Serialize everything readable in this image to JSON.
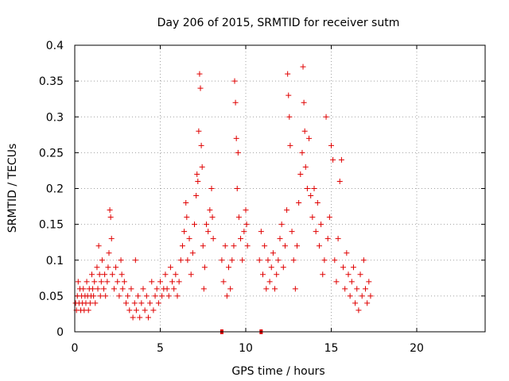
{
  "chart_data": {
    "type": "scatter",
    "title": "Day 206 of 2015, SRMTID for receiver sutm",
    "xlabel": "GPS time / hours",
    "ylabel": "SRMTID / TECUs",
    "xlim": [
      0,
      24
    ],
    "ylim": [
      0,
      0.4
    ],
    "xticks": [
      0,
      5,
      10,
      15,
      20
    ],
    "xtick_labels": [
      "0",
      "5",
      "10",
      "15",
      "20"
    ],
    "yticks": [
      0,
      0.05,
      0.1,
      0.15,
      0.2,
      0.25,
      0.3,
      0.35,
      0.4
    ],
    "ytick_labels": [
      "0",
      "0.05",
      "0.1",
      "0.15",
      "0.2",
      "0.25",
      "0.3",
      "0.35",
      "0.4"
    ],
    "grid": true,
    "marker": "plus",
    "color": "#e00000",
    "series": [
      {
        "name": "SRMTID",
        "points": [
          [
            0.05,
            0.04
          ],
          [
            0.1,
            0.03
          ],
          [
            0.15,
            0.05
          ],
          [
            0.2,
            0.07
          ],
          [
            0.25,
            0.04
          ],
          [
            0.3,
            0.06
          ],
          [
            0.35,
            0.03
          ],
          [
            0.4,
            0.05
          ],
          [
            0.45,
            0.04
          ],
          [
            0.5,
            0.06
          ],
          [
            0.55,
            0.03
          ],
          [
            0.6,
            0.05
          ],
          [
            0.65,
            0.04
          ],
          [
            0.7,
            0.07
          ],
          [
            0.75,
            0.05
          ],
          [
            0.8,
            0.03
          ],
          [
            0.85,
            0.06
          ],
          [
            0.9,
            0.04
          ],
          [
            0.95,
            0.05
          ],
          [
            1.0,
            0.08
          ],
          [
            1.05,
            0.06
          ],
          [
            1.1,
            0.05
          ],
          [
            1.15,
            0.07
          ],
          [
            1.2,
            0.04
          ],
          [
            1.3,
            0.09
          ],
          [
            1.35,
            0.06
          ],
          [
            1.4,
            0.12
          ],
          [
            1.45,
            0.08
          ],
          [
            1.5,
            0.05
          ],
          [
            1.55,
            0.07
          ],
          [
            1.6,
            0.1
          ],
          [
            1.7,
            0.06
          ],
          [
            1.75,
            0.08
          ],
          [
            1.8,
            0.05
          ],
          [
            1.9,
            0.07
          ],
          [
            1.95,
            0.09
          ],
          [
            2.0,
            0.11
          ],
          [
            2.05,
            0.17
          ],
          [
            2.1,
            0.16
          ],
          [
            2.15,
            0.13
          ],
          [
            2.2,
            0.08
          ],
          [
            2.3,
            0.06
          ],
          [
            2.4,
            0.09
          ],
          [
            2.5,
            0.07
          ],
          [
            2.6,
            0.05
          ],
          [
            2.7,
            0.1
          ],
          [
            2.75,
            0.08
          ],
          [
            2.8,
            0.06
          ],
          [
            2.9,
            0.07
          ],
          [
            3.0,
            0.04
          ],
          [
            3.1,
            0.05
          ],
          [
            3.2,
            0.03
          ],
          [
            3.3,
            0.06
          ],
          [
            3.4,
            0.02
          ],
          [
            3.5,
            0.04
          ],
          [
            3.55,
            0.1
          ],
          [
            3.6,
            0.03
          ],
          [
            3.7,
            0.05
          ],
          [
            3.8,
            0.02
          ],
          [
            3.9,
            0.04
          ],
          [
            4.0,
            0.06
          ],
          [
            4.1,
            0.03
          ],
          [
            4.2,
            0.05
          ],
          [
            4.3,
            0.02
          ],
          [
            4.4,
            0.04
          ],
          [
            4.5,
            0.07
          ],
          [
            4.6,
            0.03
          ],
          [
            4.7,
            0.05
          ],
          [
            4.8,
            0.06
          ],
          [
            4.9,
            0.04
          ],
          [
            5.0,
            0.07
          ],
          [
            5.1,
            0.05
          ],
          [
            5.2,
            0.06
          ],
          [
            5.3,
            0.08
          ],
          [
            5.4,
            0.06
          ],
          [
            5.5,
            0.05
          ],
          [
            5.6,
            0.09
          ],
          [
            5.7,
            0.07
          ],
          [
            5.8,
            0.06
          ],
          [
            5.9,
            0.08
          ],
          [
            6.0,
            0.05
          ],
          [
            6.1,
            0.07
          ],
          [
            6.2,
            0.1
          ],
          [
            6.3,
            0.12
          ],
          [
            6.4,
            0.14
          ],
          [
            6.5,
            0.18
          ],
          [
            6.55,
            0.16
          ],
          [
            6.6,
            0.1
          ],
          [
            6.7,
            0.13
          ],
          [
            6.8,
            0.08
          ],
          [
            6.9,
            0.11
          ],
          [
            7.0,
            0.15
          ],
          [
            7.1,
            0.19
          ],
          [
            7.15,
            0.22
          ],
          [
            7.2,
            0.21
          ],
          [
            7.25,
            0.28
          ],
          [
            7.3,
            0.36
          ],
          [
            7.35,
            0.34
          ],
          [
            7.4,
            0.26
          ],
          [
            7.45,
            0.23
          ],
          [
            7.5,
            0.12
          ],
          [
            7.55,
            0.06
          ],
          [
            7.6,
            0.09
          ],
          [
            7.7,
            0.15
          ],
          [
            7.8,
            0.14
          ],
          [
            7.9,
            0.17
          ],
          [
            8.0,
            0.2
          ],
          [
            8.05,
            0.16
          ],
          [
            8.1,
            0.13
          ],
          [
            8.6,
            0.1
          ],
          [
            8.7,
            0.07
          ],
          [
            8.8,
            0.12
          ],
          [
            8.9,
            0.05
          ],
          [
            9.0,
            0.09
          ],
          [
            9.1,
            0.06
          ],
          [
            9.2,
            0.1
          ],
          [
            9.3,
            0.12
          ],
          [
            9.35,
            0.35
          ],
          [
            9.4,
            0.32
          ],
          [
            9.45,
            0.27
          ],
          [
            9.5,
            0.2
          ],
          [
            9.55,
            0.25
          ],
          [
            9.6,
            0.16
          ],
          [
            9.7,
            0.13
          ],
          [
            9.8,
            0.1
          ],
          [
            9.9,
            0.14
          ],
          [
            10.0,
            0.17
          ],
          [
            10.05,
            0.15
          ],
          [
            10.1,
            0.12
          ],
          [
            10.8,
            0.1
          ],
          [
            10.9,
            0.14
          ],
          [
            11.0,
            0.08
          ],
          [
            11.1,
            0.12
          ],
          [
            11.2,
            0.06
          ],
          [
            11.3,
            0.1
          ],
          [
            11.4,
            0.07
          ],
          [
            11.5,
            0.09
          ],
          [
            11.6,
            0.11
          ],
          [
            11.7,
            0.06
          ],
          [
            11.8,
            0.08
          ],
          [
            11.9,
            0.1
          ],
          [
            12.0,
            0.13
          ],
          [
            12.1,
            0.15
          ],
          [
            12.2,
            0.09
          ],
          [
            12.3,
            0.12
          ],
          [
            12.4,
            0.17
          ],
          [
            12.45,
            0.36
          ],
          [
            12.5,
            0.33
          ],
          [
            12.55,
            0.3
          ],
          [
            12.6,
            0.26
          ],
          [
            12.7,
            0.14
          ],
          [
            12.8,
            0.1
          ],
          [
            12.9,
            0.06
          ],
          [
            13.0,
            0.12
          ],
          [
            13.1,
            0.18
          ],
          [
            13.2,
            0.22
          ],
          [
            13.3,
            0.25
          ],
          [
            13.35,
            0.37
          ],
          [
            13.4,
            0.32
          ],
          [
            13.45,
            0.28
          ],
          [
            13.5,
            0.23
          ],
          [
            13.6,
            0.2
          ],
          [
            13.7,
            0.27
          ],
          [
            13.8,
            0.19
          ],
          [
            13.9,
            0.16
          ],
          [
            14.0,
            0.2
          ],
          [
            14.1,
            0.14
          ],
          [
            14.2,
            0.18
          ],
          [
            14.3,
            0.12
          ],
          [
            14.4,
            0.15
          ],
          [
            14.5,
            0.08
          ],
          [
            14.6,
            0.1
          ],
          [
            14.7,
            0.3
          ],
          [
            14.8,
            0.13
          ],
          [
            14.9,
            0.16
          ],
          [
            15.0,
            0.26
          ],
          [
            15.1,
            0.24
          ],
          [
            15.2,
            0.1
          ],
          [
            15.3,
            0.07
          ],
          [
            15.4,
            0.13
          ],
          [
            15.5,
            0.21
          ],
          [
            15.6,
            0.24
          ],
          [
            15.7,
            0.09
          ],
          [
            15.8,
            0.06
          ],
          [
            15.9,
            0.11
          ],
          [
            16.0,
            0.08
          ],
          [
            16.1,
            0.05
          ],
          [
            16.2,
            0.07
          ],
          [
            16.3,
            0.09
          ],
          [
            16.4,
            0.04
          ],
          [
            16.5,
            0.06
          ],
          [
            16.6,
            0.03
          ],
          [
            16.7,
            0.08
          ],
          [
            16.8,
            0.05
          ],
          [
            16.9,
            0.1
          ],
          [
            17.0,
            0.06
          ],
          [
            17.1,
            0.04
          ],
          [
            17.2,
            0.07
          ],
          [
            17.3,
            0.05
          ]
        ]
      }
    ],
    "data_gaps_x": [
      8.6,
      10.9
    ]
  }
}
